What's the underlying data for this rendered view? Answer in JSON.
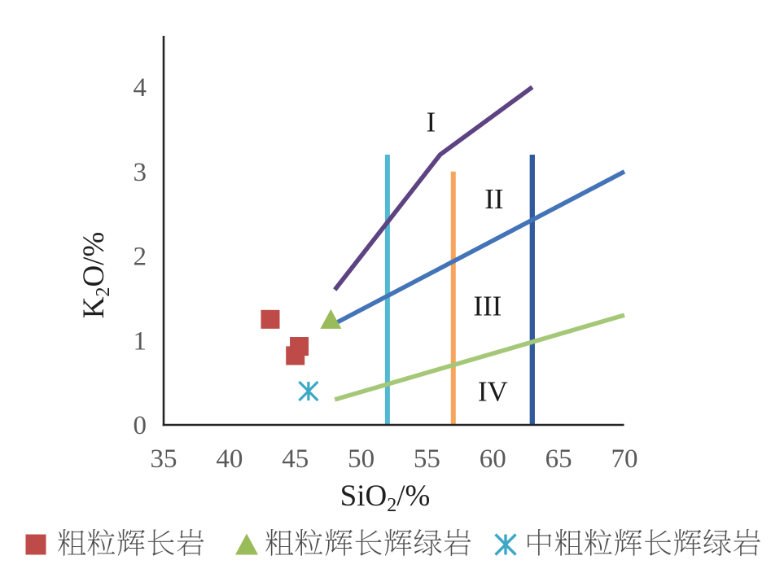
{
  "figure": {
    "background": "#ffffff",
    "axis_color": "#262626",
    "tick_label_color": "#595959",
    "region_label_color": "#1a1a1a",
    "axis_title_color": "#1f1f1f",
    "legend_text_color": "#4d4d4d"
  },
  "chart_data": {
    "type": "scatter",
    "title": "",
    "xlabel": "SiO2/%",
    "xlabel_parts": [
      {
        "text": "SiO"
      },
      {
        "text": "2",
        "sub": true
      },
      {
        "text": "/%"
      }
    ],
    "ylabel": "K2O/%",
    "ylabel_parts": [
      {
        "text": "K"
      },
      {
        "text": "2",
        "sub": true
      },
      {
        "text": "O/%"
      }
    ],
    "xlim": [
      35,
      70
    ],
    "ylim": [
      0,
      4
    ],
    "x_ticks": [
      35,
      40,
      45,
      50,
      55,
      60,
      65,
      70
    ],
    "y_ticks": [
      0,
      1,
      2,
      3,
      4
    ],
    "grid": false,
    "legend_position": "bottom",
    "boundary_lines": [
      {
        "name": "vertical-line-52",
        "color": "#52B9D2",
        "width": 6,
        "points": [
          [
            52,
            0
          ],
          [
            52,
            3.2
          ]
        ]
      },
      {
        "name": "vertical-line-57",
        "color": "#F7A55C",
        "width": 6,
        "points": [
          [
            57,
            0
          ],
          [
            57,
            3.0
          ]
        ]
      },
      {
        "name": "vertical-line-63",
        "color": "#2F5B9D",
        "width": 6.3,
        "points": [
          [
            63,
            0
          ],
          [
            63,
            3.2
          ]
        ]
      },
      {
        "name": "upper-boundary",
        "color": "#5E4382",
        "width": 5.5,
        "points": [
          [
            48,
            1.6
          ],
          [
            56,
            3.2
          ],
          [
            63,
            4.0
          ]
        ]
      },
      {
        "name": "middle-boundary",
        "color": "#4474B8",
        "width": 5.5,
        "points": [
          [
            48,
            1.2
          ],
          [
            70,
            3.0
          ]
        ]
      },
      {
        "name": "lower-boundary",
        "color": "#A5C878",
        "width": 5.5,
        "points": [
          [
            48,
            0.3
          ],
          [
            70,
            1.3
          ]
        ]
      }
    ],
    "regions": [
      {
        "label": "I",
        "x": 55.3,
        "y": 3.59
      },
      {
        "label": "II",
        "x": 60.1,
        "y": 2.68
      },
      {
        "label": "III",
        "x": 59.6,
        "y": 1.41
      },
      {
        "label": "IV",
        "x": 60.0,
        "y": 0.4
      }
    ],
    "series": [
      {
        "name": "粗粒辉长岩",
        "marker": "square",
        "color": "#BE4B48",
        "points": [
          [
            43.1,
            1.25
          ],
          [
            45.3,
            0.93
          ],
          [
            45.0,
            0.82
          ]
        ]
      },
      {
        "name": "粗粒辉长辉绿岩",
        "marker": "triangle",
        "color": "#9ABB59",
        "points": [
          [
            47.7,
            1.25
          ]
        ]
      },
      {
        "name": "中粗粒辉长辉绿岩",
        "marker": "asterisk",
        "color": "#3DA8C5",
        "points": [
          [
            46.0,
            0.4
          ]
        ]
      }
    ]
  }
}
